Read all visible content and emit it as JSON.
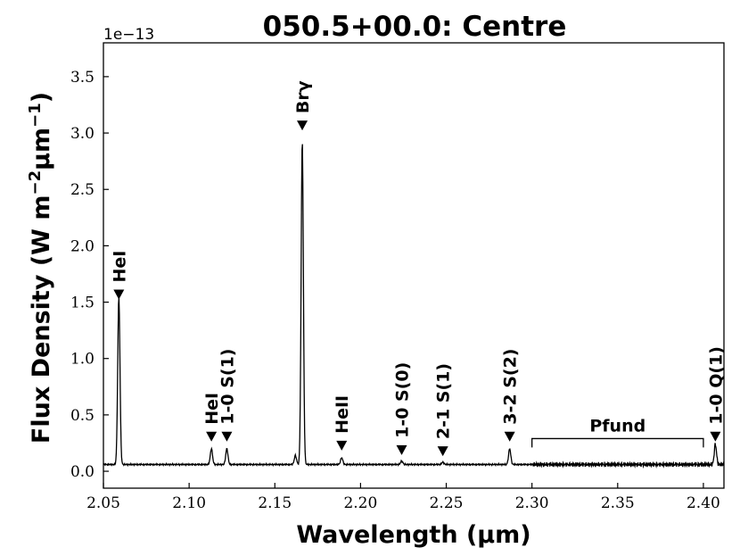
{
  "chart_data": {
    "type": "line",
    "title": "050.5+00.0: Centre",
    "xlabel": "Wavelength (μm)",
    "ylabel": "Flux Density (W m⁻²μm⁻¹)",
    "y_offset_label": "1e−13",
    "xlim": [
      2.05,
      2.412
    ],
    "ylim": [
      -0.15,
      3.8
    ],
    "x_ticks": [
      2.05,
      2.1,
      2.15,
      2.2,
      2.25,
      2.3,
      2.35,
      2.4
    ],
    "x_tick_labels": [
      "2.05",
      "2.10",
      "2.15",
      "2.20",
      "2.25",
      "2.30",
      "2.35",
      "2.40"
    ],
    "y_ticks": [
      0.0,
      0.5,
      1.0,
      1.5,
      2.0,
      2.5,
      3.0,
      3.5
    ],
    "y_tick_labels": [
      "0.0",
      "0.5",
      "1.0",
      "1.5",
      "2.0",
      "2.5",
      "3.0",
      "3.5"
    ],
    "grid": false,
    "line_color": "#000000",
    "series": [
      {
        "continuum": 0.06,
        "lines": [
          {
            "x": 2.059,
            "y": 1.55
          },
          {
            "x": 2.113,
            "y": 0.2
          },
          {
            "x": 2.122,
            "y": 0.2
          },
          {
            "x": 2.162,
            "y": 0.14
          },
          {
            "x": 2.166,
            "y": 2.94
          },
          {
            "x": 2.189,
            "y": 0.12
          },
          {
            "x": 2.224,
            "y": 0.09
          },
          {
            "x": 2.248,
            "y": 0.08
          },
          {
            "x": 2.287,
            "y": 0.2
          },
          {
            "x": 2.407,
            "y": 0.24
          }
        ]
      }
    ],
    "annotations": [
      {
        "label": "HeI",
        "x": 2.059,
        "y": 1.5
      },
      {
        "label": "HeI",
        "x": 2.113,
        "y": 0.24
      },
      {
        "label": "1-0 S(1)",
        "x": 2.122,
        "y": 0.24
      },
      {
        "label": "Brγ",
        "x": 2.166,
        "y": 3.0
      },
      {
        "label": "HeII",
        "x": 2.189,
        "y": 0.16
      },
      {
        "label": "1-0 S(0)",
        "x": 2.224,
        "y": 0.12
      },
      {
        "label": "2-1 S(1)",
        "x": 2.248,
        "y": 0.11
      },
      {
        "label": "3-2 S(2)",
        "x": 2.287,
        "y": 0.24
      },
      {
        "label": "1-0 Q(1)",
        "x": 2.407,
        "y": 0.24
      }
    ],
    "bracket": {
      "label": "Pfund",
      "x_start": 2.3,
      "x_end": 2.4,
      "y": 0.29
    }
  }
}
